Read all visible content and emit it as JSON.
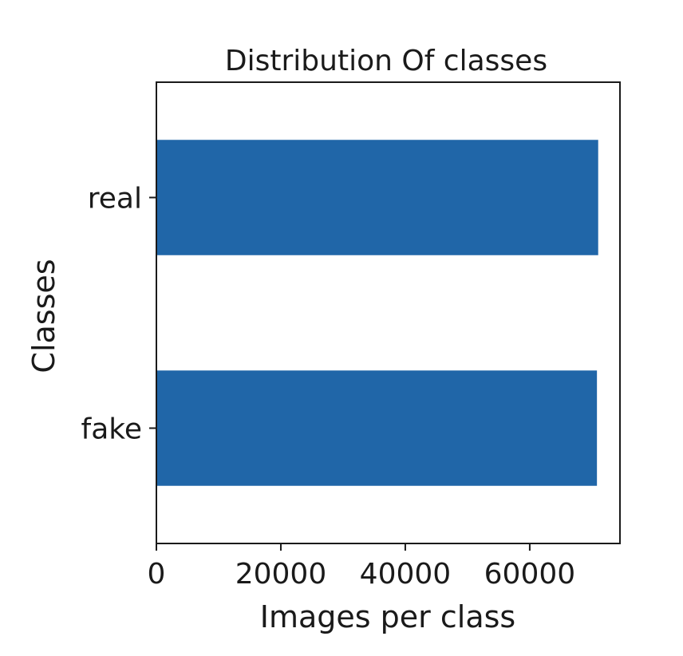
{
  "chart_data": {
    "type": "bar",
    "orientation": "horizontal",
    "title": "Distribution Of classes",
    "xlabel": "Images per class",
    "ylabel": "Classes",
    "categories": [
      "real",
      "fake"
    ],
    "values": [
      71000,
      70800
    ],
    "xlim": [
      0,
      74500
    ],
    "xticks": [
      0,
      20000,
      40000,
      60000
    ],
    "xtick_labels": [
      "0",
      "20000",
      "40000",
      "60000"
    ],
    "bar_color": "#2066a8",
    "grid": false,
    "legend": "none"
  }
}
